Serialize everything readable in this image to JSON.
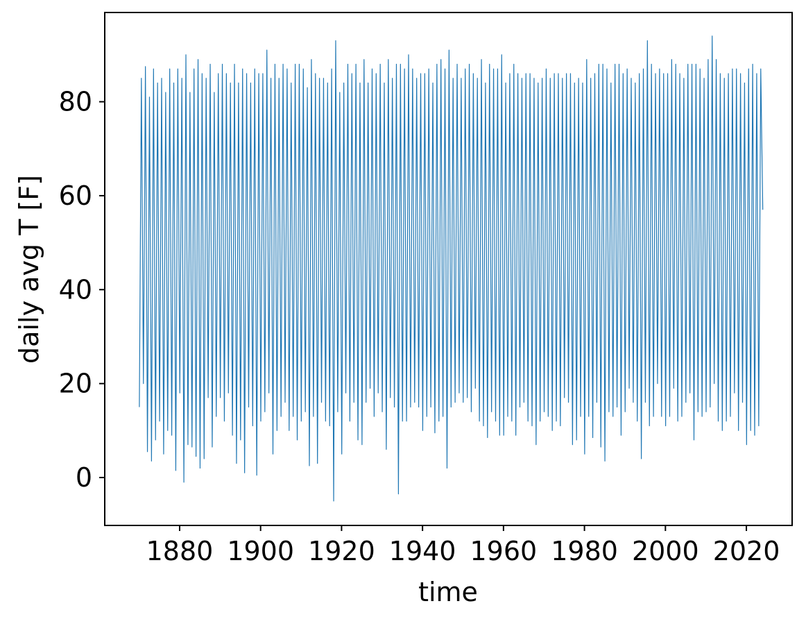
{
  "chart_data": {
    "type": "line",
    "x_label": "time",
    "y_label": "daily avg T [F]",
    "xlim": [
      1861.5,
      2031.3
    ],
    "ylim": [
      -10.2,
      99
    ],
    "xticks": [
      1880,
      1900,
      1920,
      1940,
      1960,
      1980,
      2000,
      2020
    ],
    "yticks": [
      0,
      20,
      40,
      60,
      80
    ],
    "x": [
      1870.05,
      1870.55,
      1871.05,
      1871.55,
      1872.05,
      1872.55,
      1873.05,
      1873.55,
      1874.05,
      1874.55,
      1875.05,
      1875.55,
      1876.05,
      1876.55,
      1877.05,
      1877.55,
      1878.05,
      1878.55,
      1879.05,
      1879.55,
      1880.05,
      1880.55,
      1881.05,
      1881.55,
      1882.05,
      1882.55,
      1883.05,
      1883.55,
      1884.05,
      1884.55,
      1885.05,
      1885.55,
      1886.05,
      1886.55,
      1887.05,
      1887.55,
      1888.05,
      1888.55,
      1889.05,
      1889.55,
      1890.05,
      1890.55,
      1891.05,
      1891.55,
      1892.05,
      1892.55,
      1893.05,
      1893.55,
      1894.05,
      1894.55,
      1895.05,
      1895.55,
      1896.05,
      1896.55,
      1897.05,
      1897.55,
      1898.05,
      1898.55,
      1899.05,
      1899.55,
      1900.05,
      1900.55,
      1901.05,
      1901.55,
      1902.05,
      1902.55,
      1903.05,
      1903.55,
      1904.05,
      1904.55,
      1905.05,
      1905.55,
      1906.05,
      1906.55,
      1907.05,
      1907.55,
      1908.05,
      1908.55,
      1909.05,
      1909.55,
      1910.05,
      1910.55,
      1911.05,
      1911.55,
      1912.05,
      1912.55,
      1913.05,
      1913.55,
      1914.05,
      1914.55,
      1915.05,
      1915.55,
      1916.05,
      1916.55,
      1917.05,
      1917.55,
      1918.05,
      1918.55,
      1919.05,
      1919.55,
      1920.05,
      1920.55,
      1921.05,
      1921.55,
      1922.05,
      1922.55,
      1923.05,
      1923.55,
      1924.05,
      1924.55,
      1925.05,
      1925.55,
      1926.05,
      1926.55,
      1927.05,
      1927.55,
      1928.05,
      1928.55,
      1929.05,
      1929.55,
      1930.05,
      1930.55,
      1931.05,
      1931.55,
      1932.05,
      1932.55,
      1933.05,
      1933.55,
      1934.05,
      1934.55,
      1935.05,
      1935.55,
      1936.05,
      1936.55,
      1937.05,
      1937.55,
      1938.05,
      1938.55,
      1939.05,
      1939.55,
      1940.05,
      1940.55,
      1941.05,
      1941.55,
      1942.05,
      1942.55,
      1943.05,
      1943.55,
      1944.05,
      1944.55,
      1945.05,
      1945.55,
      1946.05,
      1946.55,
      1947.05,
      1947.55,
      1948.05,
      1948.55,
      1949.05,
      1949.55,
      1950.05,
      1950.55,
      1951.05,
      1951.55,
      1952.05,
      1952.55,
      1953.05,
      1953.55,
      1954.05,
      1954.55,
      1955.05,
      1955.55,
      1956.05,
      1956.55,
      1957.05,
      1957.55,
      1958.05,
      1958.55,
      1959.05,
      1959.55,
      1960.05,
      1960.55,
      1961.05,
      1961.55,
      1962.05,
      1962.55,
      1963.05,
      1963.55,
      1964.05,
      1964.55,
      1965.05,
      1965.55,
      1966.05,
      1966.55,
      1967.05,
      1967.55,
      1968.05,
      1968.55,
      1969.05,
      1969.55,
      1970.05,
      1970.55,
      1971.05,
      1971.55,
      1972.05,
      1972.55,
      1973.05,
      1973.55,
      1974.05,
      1974.55,
      1975.05,
      1975.55,
      1976.05,
      1976.55,
      1977.05,
      1977.55,
      1978.05,
      1978.55,
      1979.05,
      1979.55,
      1980.05,
      1980.55,
      1981.05,
      1981.55,
      1982.05,
      1982.55,
      1983.05,
      1983.55,
      1984.05,
      1984.55,
      1985.05,
      1985.55,
      1986.05,
      1986.55,
      1987.05,
      1987.55,
      1988.05,
      1988.55,
      1989.05,
      1989.55,
      1990.05,
      1990.55,
      1991.05,
      1991.55,
      1992.05,
      1992.55,
      1993.05,
      1993.55,
      1994.05,
      1994.55,
      1995.05,
      1995.55,
      1996.05,
      1996.55,
      1997.05,
      1997.55,
      1998.05,
      1998.55,
      1999.05,
      1999.55,
      2000.05,
      2000.55,
      2001.05,
      2001.55,
      2002.05,
      2002.55,
      2003.05,
      2003.55,
      2004.05,
      2004.55,
      2005.05,
      2005.55,
      2006.05,
      2006.55,
      2007.05,
      2007.55,
      2008.05,
      2008.55,
      2009.05,
      2009.55,
      2010.05,
      2010.55,
      2011.05,
      2011.55,
      2012.05,
      2012.55,
      2013.05,
      2013.55,
      2014.05,
      2014.55,
      2015.05,
      2015.55,
      2016.05,
      2016.55,
      2017.05,
      2017.55,
      2018.05,
      2018.55,
      2019.05,
      2019.55,
      2020.05,
      2020.55,
      2021.05,
      2021.55,
      2022.05,
      2022.55,
      2023.05,
      2023.55,
      2024.05
    ],
    "series": [
      {
        "color": "#1f77b4",
        "values": [
          15,
          85,
          20,
          87.5,
          5.5,
          81,
          3.5,
          87,
          8,
          84,
          12,
          85,
          5,
          82,
          10,
          87,
          9,
          84,
          1.5,
          87,
          18,
          85,
          -1,
          90,
          7,
          82,
          6.5,
          87,
          4.5,
          89,
          2,
          86,
          4,
          85,
          17,
          88,
          6.5,
          82,
          13,
          86,
          17,
          88,
          12,
          86,
          18,
          84,
          9,
          88,
          3,
          84,
          8,
          87,
          1,
          86,
          15,
          84,
          11,
          87,
          0.5,
          86,
          12,
          86,
          14,
          91,
          18,
          85,
          5,
          88,
          10,
          85,
          13,
          88,
          16,
          87,
          10,
          84,
          13,
          88,
          8,
          88,
          12,
          87,
          14,
          83,
          2.5,
          89,
          13,
          86,
          3,
          85,
          16,
          85,
          12,
          84,
          11,
          87,
          -5,
          93,
          14,
          82,
          5,
          84,
          18,
          88,
          12,
          86,
          16,
          88,
          8,
          84,
          7,
          89,
          16,
          84,
          19,
          87,
          13,
          86,
          18,
          88,
          14,
          84,
          6,
          89,
          17,
          85,
          15,
          88,
          -3.5,
          88,
          12,
          87,
          12,
          90,
          15,
          87,
          16,
          85,
          15,
          86,
          10,
          86,
          13,
          87,
          15,
          84,
          9.5,
          88,
          12,
          89,
          13,
          87,
          2,
          91,
          15,
          85,
          16,
          88,
          18,
          85,
          16,
          87,
          17,
          88,
          14,
          86,
          19,
          85,
          12,
          89,
          11,
          84,
          8.5,
          88,
          14,
          87,
          12,
          87,
          9,
          90,
          9,
          84,
          13,
          86,
          12,
          88,
          9,
          86,
          15,
          85,
          16,
          86,
          12,
          86,
          11,
          85,
          7,
          84,
          12,
          85,
          14,
          87,
          13,
          85,
          10,
          86,
          12,
          86,
          11,
          85,
          17,
          86,
          16,
          86,
          7,
          84,
          8,
          85,
          13,
          84,
          5,
          89,
          13,
          85,
          8.5,
          86,
          16,
          88,
          6.5,
          88,
          3.5,
          87,
          14,
          84,
          13,
          88,
          15,
          88,
          9,
          86,
          14,
          87,
          19,
          85,
          16,
          84,
          12,
          86,
          4,
          87,
          16,
          93,
          11,
          88,
          13,
          86,
          20,
          87,
          13,
          86,
          11,
          86,
          13,
          89,
          19,
          88,
          12,
          86,
          13,
          85,
          16,
          88,
          18,
          88,
          8,
          88,
          14,
          87,
          13,
          85,
          14,
          89,
          15,
          94,
          20,
          89,
          12,
          86,
          10,
          85,
          12,
          86,
          13,
          87,
          18,
          87,
          10,
          86,
          16,
          84,
          7,
          87,
          10,
          88,
          9,
          86,
          11,
          87,
          57
        ]
      }
    ]
  }
}
